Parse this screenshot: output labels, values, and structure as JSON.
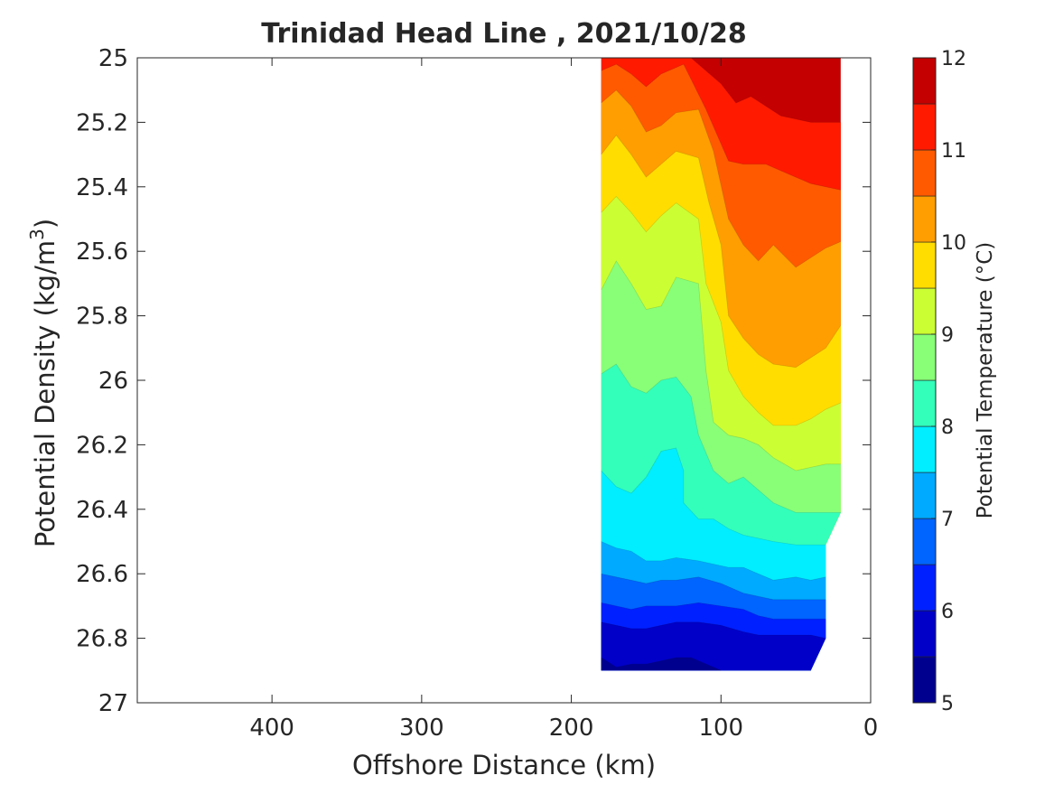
{
  "chart_data": {
    "type": "contourf",
    "title": "Trinidad Head Line , 2021/10/28",
    "xlabel": "Offshore Distance (km)",
    "ylabel": "Potential Density (kg/m",
    "ylabel_superscript": "3",
    "ylabel_suffix": ")",
    "colorbar_label": "Potential Temperature (°C)",
    "xlim": [
      490,
      0
    ],
    "ylim": [
      25,
      27
    ],
    "x_reversed": true,
    "y_reversed": true,
    "xticks": [
      400,
      300,
      200,
      100,
      0
    ],
    "yticks": [
      25,
      25.2,
      25.4,
      25.6,
      25.8,
      26,
      26.2,
      26.4,
      26.6,
      26.8,
      27
    ],
    "xtick_labels": [
      "400",
      "300",
      "200",
      "100",
      "0"
    ],
    "ytick_labels": [
      "25",
      "25.2",
      "25.4",
      "25.6",
      "25.8",
      "26",
      "26.2",
      "26.4",
      "26.6",
      "26.8",
      "27"
    ],
    "colorbar_ticks": [
      5,
      6,
      7,
      8,
      9,
      10,
      11,
      12
    ],
    "colorbar_tick_labels": [
      "5",
      "6",
      "7",
      "8",
      "9",
      "10",
      "11",
      "12"
    ],
    "levels": [
      5,
      5.5,
      6,
      6.5,
      7,
      7.5,
      8,
      8.5,
      9,
      9.5,
      10,
      10.5,
      11,
      11.5,
      12
    ],
    "level_colors": [
      "#00008f",
      "#0000c8",
      "#0020ff",
      "#0064ff",
      "#00aaff",
      "#00eeff",
      "#33ffbb",
      "#88ff77",
      "#ccff33",
      "#ffdd00",
      "#ff9e00",
      "#ff5a00",
      "#ff1a00",
      "#c40000"
    ],
    "grid": false,
    "data_domain": {
      "top_boundary": [
        [
          180,
          25.0
        ],
        [
          20,
          25.0
        ]
      ],
      "right_boundary": [
        [
          20,
          25.0
        ],
        [
          20,
          26.41
        ],
        [
          30,
          26.51
        ],
        [
          30,
          26.8
        ],
        [
          40,
          26.9
        ]
      ],
      "bottom_boundary": [
        [
          40,
          26.9
        ],
        [
          180,
          26.9
        ]
      ],
      "left_boundary": [
        [
          180,
          26.9
        ],
        [
          180,
          25.0
        ]
      ]
    },
    "isotherms": [
      {
        "level": 11.5,
        "points": [
          [
            129,
            25.0
          ],
          [
            120,
            25.0
          ],
          [
            100,
            25.08
          ],
          [
            90,
            25.14
          ],
          [
            80,
            25.12
          ],
          [
            70,
            25.15
          ],
          [
            60,
            25.18
          ],
          [
            50,
            25.19
          ],
          [
            40,
            25.2
          ],
          [
            20,
            25.2
          ]
        ]
      },
      {
        "level": 11.0,
        "points": [
          [
            180,
            25.04
          ],
          [
            170,
            25.02
          ],
          [
            160,
            25.05
          ],
          [
            150,
            25.09
          ],
          [
            140,
            25.05
          ],
          [
            125,
            25.02
          ],
          [
            110,
            25.16
          ],
          [
            95,
            25.32
          ],
          [
            85,
            25.33
          ],
          [
            70,
            25.33
          ],
          [
            60,
            25.35
          ],
          [
            50,
            25.37
          ],
          [
            40,
            25.39
          ],
          [
            20,
            25.41
          ]
        ]
      },
      {
        "level": 10.5,
        "points": [
          [
            180,
            25.14
          ],
          [
            170,
            25.1
          ],
          [
            160,
            25.15
          ],
          [
            150,
            25.23
          ],
          [
            140,
            25.21
          ],
          [
            130,
            25.17
          ],
          [
            115,
            25.16
          ],
          [
            105,
            25.29
          ],
          [
            95,
            25.5
          ],
          [
            85,
            25.58
          ],
          [
            75,
            25.63
          ],
          [
            65,
            25.58
          ],
          [
            50,
            25.65
          ],
          [
            40,
            25.62
          ],
          [
            30,
            25.59
          ],
          [
            20,
            25.57
          ]
        ]
      },
      {
        "level": 10.0,
        "points": [
          [
            180,
            25.3
          ],
          [
            170,
            25.24
          ],
          [
            160,
            25.3
          ],
          [
            150,
            25.37
          ],
          [
            140,
            25.33
          ],
          [
            130,
            25.29
          ],
          [
            115,
            25.31
          ],
          [
            108,
            25.45
          ],
          [
            100,
            25.58
          ],
          [
            95,
            25.8
          ],
          [
            85,
            25.87
          ],
          [
            75,
            25.92
          ],
          [
            65,
            25.95
          ],
          [
            50,
            25.96
          ],
          [
            40,
            25.93
          ],
          [
            30,
            25.9
          ],
          [
            20,
            25.83
          ]
        ]
      },
      {
        "level": 9.5,
        "points": [
          [
            180,
            25.48
          ],
          [
            170,
            25.43
          ],
          [
            160,
            25.48
          ],
          [
            150,
            25.54
          ],
          [
            140,
            25.49
          ],
          [
            130,
            25.45
          ],
          [
            115,
            25.5
          ],
          [
            110,
            25.7
          ],
          [
            100,
            25.82
          ],
          [
            95,
            25.97
          ],
          [
            85,
            26.05
          ],
          [
            75,
            26.1
          ],
          [
            65,
            26.14
          ],
          [
            50,
            26.14
          ],
          [
            40,
            26.12
          ],
          [
            30,
            26.09
          ],
          [
            20,
            26.07
          ]
        ]
      },
      {
        "level": 9.0,
        "points": [
          [
            180,
            25.72
          ],
          [
            170,
            25.63
          ],
          [
            160,
            25.7
          ],
          [
            150,
            25.78
          ],
          [
            140,
            25.77
          ],
          [
            130,
            25.68
          ],
          [
            115,
            25.7
          ],
          [
            110,
            25.97
          ],
          [
            105,
            26.13
          ],
          [
            95,
            26.17
          ],
          [
            85,
            26.18
          ],
          [
            75,
            26.2
          ],
          [
            65,
            26.24
          ],
          [
            50,
            26.28
          ],
          [
            40,
            26.27
          ],
          [
            30,
            26.26
          ],
          [
            20,
            26.26
          ]
        ]
      },
      {
        "level": 8.5,
        "points": [
          [
            180,
            25.98
          ],
          [
            170,
            25.95
          ],
          [
            160,
            26.02
          ],
          [
            150,
            26.04
          ],
          [
            140,
            26.0
          ],
          [
            130,
            25.99
          ],
          [
            120,
            26.05
          ],
          [
            115,
            26.17
          ],
          [
            105,
            26.28
          ],
          [
            95,
            26.32
          ],
          [
            85,
            26.3
          ],
          [
            75,
            26.34
          ],
          [
            65,
            26.38
          ],
          [
            50,
            26.41
          ],
          [
            40,
            26.41
          ],
          [
            30,
            26.41
          ],
          [
            20,
            26.41
          ]
        ]
      },
      {
        "level": 8.0,
        "points": [
          [
            180,
            26.28
          ],
          [
            170,
            26.33
          ],
          [
            160,
            26.35
          ],
          [
            150,
            26.3
          ],
          [
            140,
            26.22
          ],
          [
            130,
            26.21
          ],
          [
            125,
            26.28
          ],
          [
            125,
            26.38
          ],
          [
            115,
            26.43
          ],
          [
            105,
            26.43
          ],
          [
            95,
            26.46
          ],
          [
            85,
            26.48
          ],
          [
            75,
            26.49
          ],
          [
            65,
            26.5
          ],
          [
            50,
            26.51
          ],
          [
            40,
            26.51
          ],
          [
            30,
            26.51
          ]
        ]
      },
      {
        "level": 7.5,
        "points": [
          [
            180,
            26.5
          ],
          [
            170,
            26.52
          ],
          [
            160,
            26.53
          ],
          [
            150,
            26.56
          ],
          [
            140,
            26.56
          ],
          [
            130,
            26.55
          ],
          [
            115,
            26.56
          ],
          [
            105,
            26.57
          ],
          [
            95,
            26.58
          ],
          [
            85,
            26.58
          ],
          [
            75,
            26.6
          ],
          [
            65,
            26.62
          ],
          [
            50,
            26.61
          ],
          [
            40,
            26.62
          ],
          [
            30,
            26.61
          ]
        ]
      },
      {
        "level": 7.0,
        "points": [
          [
            180,
            26.6
          ],
          [
            170,
            26.61
          ],
          [
            160,
            26.62
          ],
          [
            150,
            26.63
          ],
          [
            140,
            26.62
          ],
          [
            130,
            26.62
          ],
          [
            115,
            26.61
          ],
          [
            100,
            26.63
          ],
          [
            85,
            26.66
          ],
          [
            75,
            26.67
          ],
          [
            65,
            26.68
          ],
          [
            50,
            26.68
          ],
          [
            40,
            26.68
          ],
          [
            30,
            26.68
          ]
        ]
      },
      {
        "level": 6.5,
        "points": [
          [
            180,
            26.69
          ],
          [
            170,
            26.7
          ],
          [
            160,
            26.71
          ],
          [
            150,
            26.7
          ],
          [
            140,
            26.7
          ],
          [
            130,
            26.7
          ],
          [
            115,
            26.69
          ],
          [
            100,
            26.7
          ],
          [
            85,
            26.71
          ],
          [
            75,
            26.73
          ],
          [
            65,
            26.74
          ],
          [
            50,
            26.74
          ],
          [
            40,
            26.74
          ],
          [
            30,
            26.74
          ]
        ]
      },
      {
        "level": 6.0,
        "points": [
          [
            180,
            26.75
          ],
          [
            170,
            26.76
          ],
          [
            160,
            26.77
          ],
          [
            150,
            26.77
          ],
          [
            140,
            26.76
          ],
          [
            130,
            26.75
          ],
          [
            115,
            26.75
          ],
          [
            100,
            26.76
          ],
          [
            85,
            26.78
          ],
          [
            75,
            26.79
          ],
          [
            65,
            26.79
          ],
          [
            50,
            26.79
          ],
          [
            40,
            26.79
          ],
          [
            30,
            26.8
          ]
        ]
      },
      {
        "level": 5.5,
        "points": [
          [
            180,
            26.86
          ],
          [
            170,
            26.89
          ],
          [
            160,
            26.88
          ],
          [
            150,
            26.88
          ],
          [
            140,
            26.87
          ],
          [
            130,
            26.86
          ],
          [
            120,
            26.86
          ],
          [
            110,
            26.88
          ],
          [
            100,
            26.9
          ]
        ]
      }
    ]
  }
}
